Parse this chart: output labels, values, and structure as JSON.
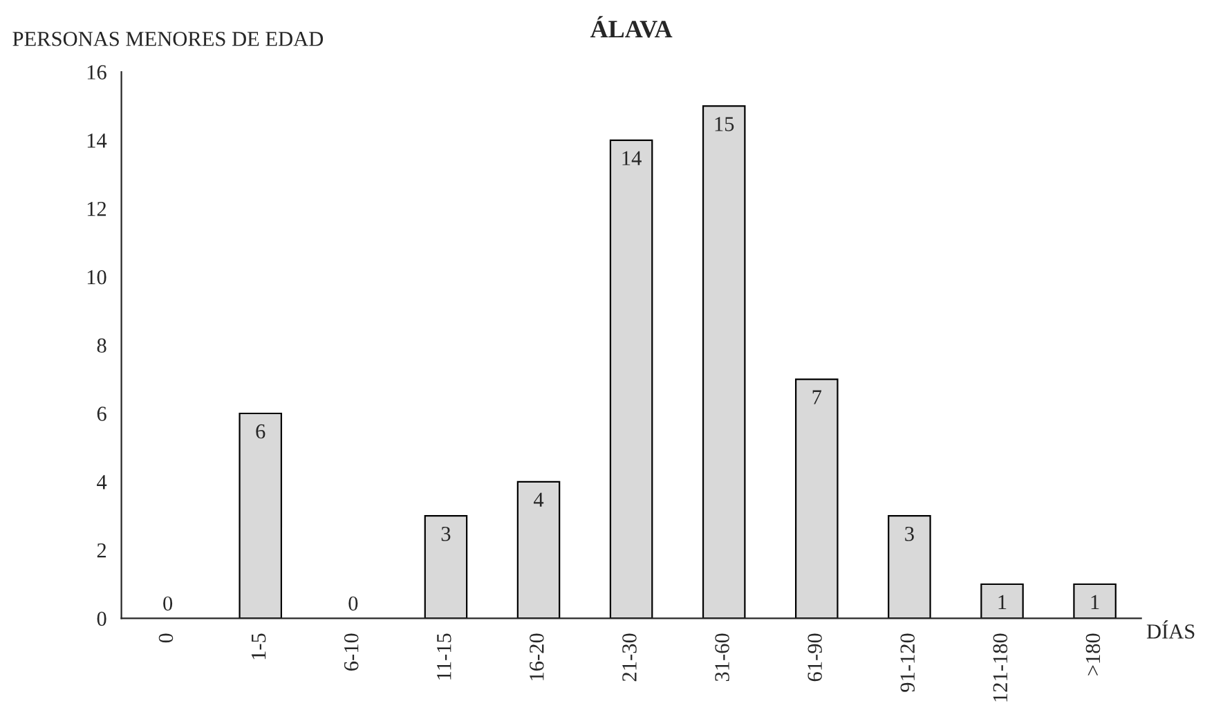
{
  "chart_data": {
    "type": "bar",
    "title": "ÁLAVA",
    "ylabel": "PERSONAS MENORES DE EDAD",
    "xlabel": "DÍAS",
    "categories": [
      "0",
      "1-5",
      "6-10",
      "11-15",
      "16-20",
      "21-30",
      "31-60",
      "61-90",
      "91-120",
      "121-180",
      ">180"
    ],
    "values": [
      0,
      6,
      0,
      3,
      4,
      14,
      15,
      7,
      3,
      1,
      1
    ],
    "color": "#d9d9d9",
    "ylim": [
      0,
      16
    ],
    "yticks": [
      0,
      2,
      4,
      6,
      8,
      10,
      12,
      14,
      16
    ],
    "grid": false,
    "data_labels": true
  }
}
